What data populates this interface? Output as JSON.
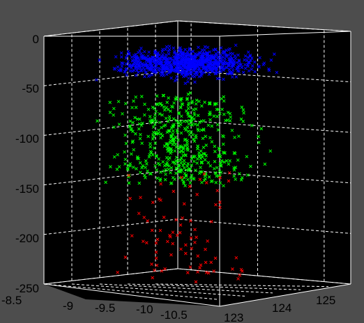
{
  "chart_data": {
    "type": "scatter",
    "title": "",
    "xlabel": "",
    "ylabel": "",
    "zlabel": "",
    "xlim": [
      -10.9,
      -8.5
    ],
    "ylim": [
      122.8,
      125.4
    ],
    "zlim": [
      -250,
      0
    ],
    "x_ticks": [
      "-8.5",
      "-9",
      "-9.5",
      "-10",
      "-10.5"
    ],
    "y_ticks": [
      "123",
      "124",
      "125"
    ],
    "z_ticks": [
      "0",
      "-50",
      "-100",
      "-150",
      "-200",
      "-250"
    ],
    "grid": true,
    "marker": "x",
    "series": [
      {
        "color": "#0000ff",
        "depth_range": [
          -80,
          0
        ],
        "count": 900
      },
      {
        "color": "#00ff00",
        "depth_range": [
          -150,
          -65
        ],
        "count": 500
      },
      {
        "color": "#ff0000",
        "depth_range": [
          -250,
          -140
        ],
        "count": 85
      }
    ]
  }
}
